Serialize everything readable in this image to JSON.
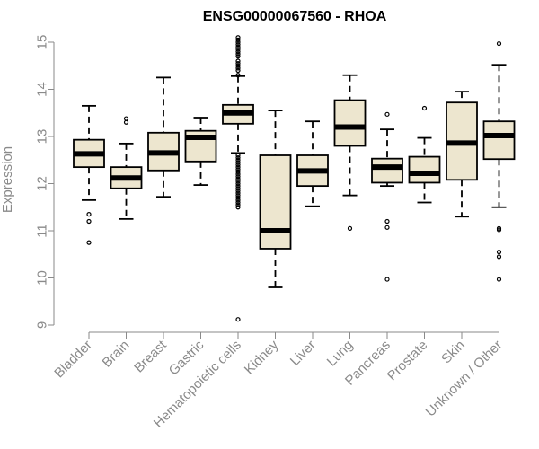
{
  "chart_data": {
    "type": "boxplot",
    "title": "ENSG00000067560 - RHOA",
    "xlabel": "",
    "ylabel": "Expression",
    "ylim": [
      9,
      15
    ],
    "yticks": [
      "9",
      "10",
      "11",
      "12",
      "13",
      "14",
      "15"
    ],
    "categories": [
      "Bladder",
      "Brain",
      "Breast",
      "Gastric",
      "Hematopoietic cells",
      "Kidney",
      "Liver",
      "Lung",
      "Pancreas",
      "Prostate",
      "Skin",
      "Unknown / Other"
    ],
    "colors": {
      "box_fill": "#ede6cf",
      "stroke": "#000000",
      "axis": "#8a8a8a"
    },
    "boxes": [
      {
        "name": "Bladder",
        "q1": 12.35,
        "median": 12.63,
        "q3": 12.93,
        "whisker_low": 11.65,
        "whisker_high": 13.65,
        "outliers": [
          11.35,
          11.2,
          10.75
        ]
      },
      {
        "name": "Brain",
        "q1": 11.9,
        "median": 12.12,
        "q3": 12.35,
        "whisker_low": 11.25,
        "whisker_high": 12.85,
        "outliers": [
          13.38,
          13.3
        ]
      },
      {
        "name": "Breast",
        "q1": 12.28,
        "median": 12.65,
        "q3": 13.08,
        "whisker_low": 11.72,
        "whisker_high": 14.25,
        "outliers": []
      },
      {
        "name": "Gastric",
        "q1": 12.47,
        "median": 12.98,
        "q3": 13.12,
        "whisker_low": 11.97,
        "whisker_high": 13.4,
        "outliers": []
      },
      {
        "name": "Hematopoietic cells",
        "q1": 13.27,
        "median": 13.5,
        "q3": 13.67,
        "whisker_low": 12.65,
        "whisker_high": 14.28,
        "outliers": [
          15.1,
          15.05,
          15.0,
          14.95,
          14.9,
          14.85,
          14.8,
          14.75,
          14.7,
          14.6,
          14.55,
          14.5,
          14.45,
          14.4,
          14.3,
          12.6,
          12.55,
          12.5,
          12.45,
          12.4,
          12.35,
          12.3,
          12.25,
          12.2,
          12.15,
          12.1,
          12.05,
          12.0,
          11.95,
          11.9,
          11.85,
          11.8,
          11.75,
          11.7,
          11.65,
          11.6,
          11.55,
          11.5,
          9.12
        ]
      },
      {
        "name": "Kidney",
        "q1": 10.62,
        "median": 11.0,
        "q3": 12.6,
        "whisker_low": 9.8,
        "whisker_high": 13.55,
        "outliers": []
      },
      {
        "name": "Liver",
        "q1": 11.95,
        "median": 12.27,
        "q3": 12.6,
        "whisker_low": 11.52,
        "whisker_high": 13.32,
        "outliers": []
      },
      {
        "name": "Lung",
        "q1": 12.8,
        "median": 13.2,
        "q3": 13.77,
        "whisker_low": 11.75,
        "whisker_high": 14.3,
        "outliers": [
          11.05
        ]
      },
      {
        "name": "Pancreas",
        "q1": 12.02,
        "median": 12.35,
        "q3": 12.53,
        "whisker_low": 11.95,
        "whisker_high": 13.15,
        "outliers": [
          13.47,
          11.2,
          11.07,
          9.97
        ]
      },
      {
        "name": "Prostate",
        "q1": 12.02,
        "median": 12.22,
        "q3": 12.57,
        "whisker_low": 11.6,
        "whisker_high": 12.97,
        "outliers": [
          13.6
        ]
      },
      {
        "name": "Skin",
        "q1": 12.08,
        "median": 12.86,
        "q3": 13.72,
        "whisker_low": 11.3,
        "whisker_high": 13.95,
        "outliers": []
      },
      {
        "name": "Unknown / Other",
        "q1": 12.52,
        "median": 13.02,
        "q3": 13.32,
        "whisker_low": 11.5,
        "whisker_high": 14.52,
        "outliers": [
          14.97,
          11.05,
          11.02,
          10.55,
          10.45,
          9.97
        ]
      }
    ]
  }
}
